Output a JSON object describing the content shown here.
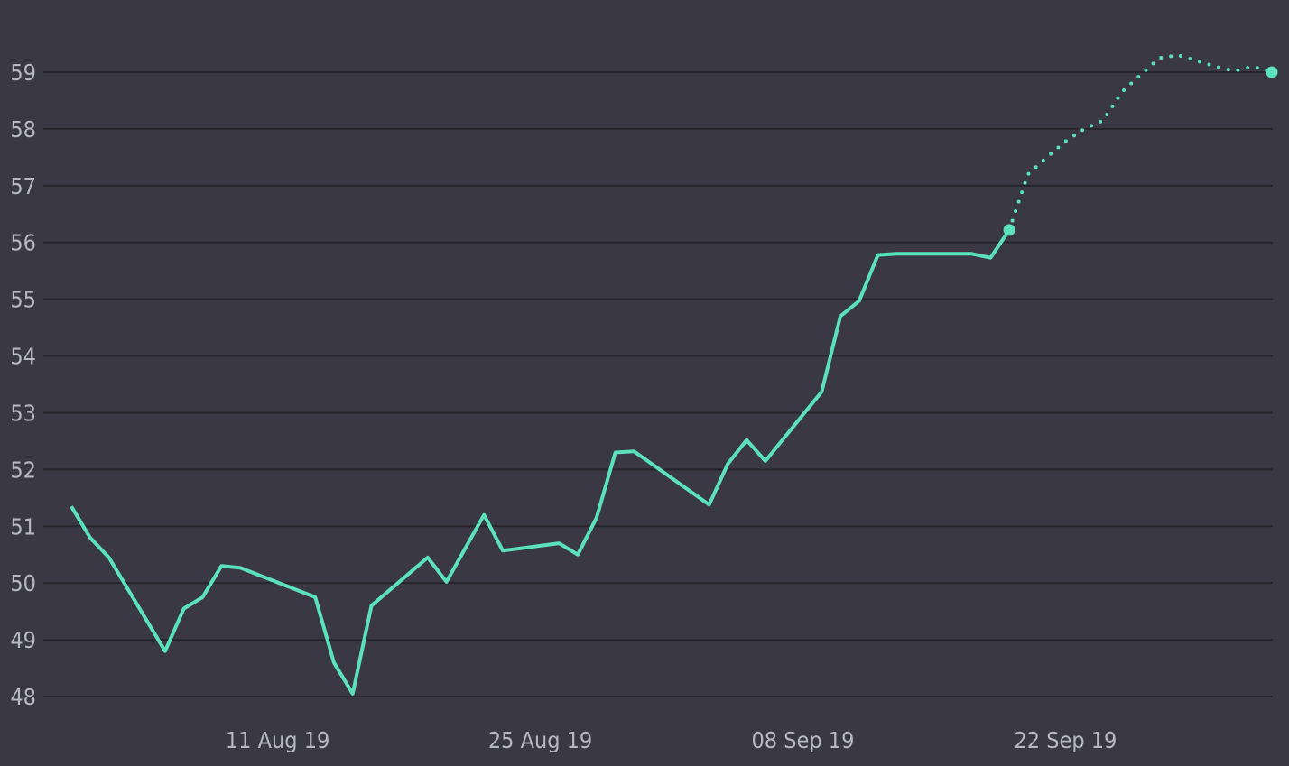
{
  "chart_data": {
    "type": "line",
    "title": "",
    "xlabel": "",
    "ylabel": "",
    "grid": "horizontal",
    "legend": "none",
    "ylim": [
      48,
      59
    ],
    "xlim": [
      "2019-07-31",
      "2019-10-03"
    ],
    "y_ticks": [
      48,
      49,
      50,
      51,
      52,
      53,
      54,
      55,
      56,
      57,
      58,
      59
    ],
    "x_ticks": [
      {
        "date": "2019-08-11",
        "label": "11 Aug 19"
      },
      {
        "date": "2019-08-25",
        "label": "25 Aug 19"
      },
      {
        "date": "2019-09-08",
        "label": "08 Sep 19"
      },
      {
        "date": "2019-09-22",
        "label": "22 Sep 19"
      }
    ],
    "colors": {
      "background": "#393844",
      "grid": "#26252d",
      "line": "#5ce1bd",
      "tick_text": "#b7b7c2"
    },
    "series": [
      {
        "style": "solid",
        "x": [
          "2019-07-31",
          "2019-08-01",
          "2019-08-02",
          "2019-08-05",
          "2019-08-06",
          "2019-08-07",
          "2019-08-08",
          "2019-08-09",
          "2019-08-13",
          "2019-08-14",
          "2019-08-15",
          "2019-08-16",
          "2019-08-19",
          "2019-08-20",
          "2019-08-22",
          "2019-08-23",
          "2019-08-26",
          "2019-08-27",
          "2019-08-28",
          "2019-08-29",
          "2019-08-30",
          "2019-09-03",
          "2019-09-04",
          "2019-09-05",
          "2019-09-06",
          "2019-09-09",
          "2019-09-10",
          "2019-09-11",
          "2019-09-12",
          "2019-09-13",
          "2019-09-17",
          "2019-09-18",
          "2019-09-19"
        ],
        "y": [
          51.35,
          50.8,
          50.45,
          48.8,
          49.55,
          49.75,
          50.3,
          50.27,
          49.75,
          48.6,
          48.05,
          49.6,
          50.45,
          50.02,
          51.2,
          50.57,
          50.7,
          50.5,
          51.15,
          52.3,
          52.32,
          51.38,
          52.1,
          52.52,
          52.15,
          53.37,
          54.7,
          54.97,
          55.78,
          55.8,
          55.8,
          55.73,
          56.22
        ]
      },
      {
        "style": "dotted",
        "x": [
          "2019-09-19",
          "2019-09-20",
          "2019-09-21",
          "2019-09-22",
          "2019-09-23",
          "2019-09-24",
          "2019-09-25",
          "2019-09-26",
          "2019-09-27",
          "2019-09-28",
          "2019-09-29",
          "2019-09-30",
          "2019-10-01",
          "2019-10-02",
          "2019-10-03"
        ],
        "y": [
          56.22,
          57.2,
          57.5,
          57.78,
          58.0,
          58.15,
          58.65,
          58.95,
          59.25,
          59.3,
          59.2,
          59.1,
          59.02,
          59.1,
          59.0
        ]
      }
    ]
  }
}
